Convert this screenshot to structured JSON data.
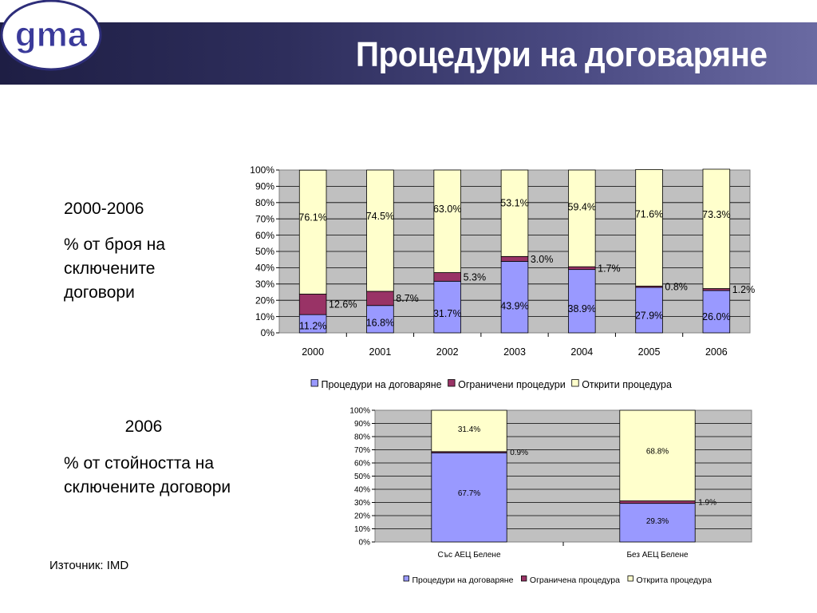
{
  "header": {
    "title": "Процедури на договаряне",
    "logo_text": "gma"
  },
  "left_text": {
    "period": "2000-2006",
    "desc_top": "% от броя на сключените договори",
    "year_bottom": "2006",
    "desc_bottom": "% от стойността на сключените договори",
    "source": "Източник: IMD"
  },
  "colors": {
    "negotiated": "#9999ff",
    "restricted": "#993366",
    "open": "#ffffcc",
    "plot_bg": "#c0c0c0"
  },
  "chart_data": [
    {
      "type": "bar",
      "stacked": true,
      "categories": [
        "2000",
        "2001",
        "2002",
        "2003",
        "2004",
        "2005",
        "2006"
      ],
      "series": [
        {
          "name": "Процедури на договаряне",
          "values": [
            11.2,
            16.8,
            31.7,
            43.9,
            38.9,
            27.9,
            26.0
          ],
          "labels": [
            "11.2%",
            "16.8%",
            "31.7%",
            "43.9%",
            "38.9%",
            "27.9%",
            "26.0%"
          ]
        },
        {
          "name": "Ограничени процедури",
          "values": [
            12.6,
            8.7,
            5.3,
            3.0,
            1.7,
            0.8,
            1.2
          ],
          "labels": [
            "12.6%",
            "8.7%",
            "5.3%",
            "3.0%",
            "1.7%",
            "0.8%",
            "1.2%"
          ]
        },
        {
          "name": "Открити процедура",
          "values": [
            76.1,
            74.5,
            63.0,
            53.1,
            59.4,
            71.6,
            73.3
          ],
          "labels": [
            "76.1%",
            "74.5%",
            "63.0%",
            "53.1%",
            "59.4%",
            "71.6%",
            "73.3%"
          ]
        }
      ],
      "y_ticks": [
        "0%",
        "10%",
        "20%",
        "30%",
        "40%",
        "50%",
        "60%",
        "70%",
        "80%",
        "90%",
        "100%"
      ],
      "ylim": [
        0,
        100
      ],
      "grid": true,
      "legend": "bottom"
    },
    {
      "type": "bar",
      "stacked": true,
      "categories": [
        "Със АЕЦ Белене",
        "Без АЕЦ Белене"
      ],
      "series": [
        {
          "name": "Процедури на договаряне",
          "values": [
            67.7,
            29.3
          ],
          "labels": [
            "67.7%",
            "29.3%"
          ]
        },
        {
          "name": "Ограничена процедура",
          "values": [
            0.9,
            1.9
          ],
          "labels": [
            "0.9%",
            "1.9%"
          ]
        },
        {
          "name": "Открита процедура",
          "values": [
            31.4,
            68.8
          ],
          "labels": [
            "31.4%",
            "68.8%"
          ]
        }
      ],
      "y_ticks": [
        "0%",
        "10%",
        "20%",
        "30%",
        "40%",
        "50%",
        "60%",
        "70%",
        "80%",
        "90%",
        "100%"
      ],
      "ylim": [
        0,
        100
      ],
      "grid": true,
      "legend": "bottom"
    }
  ]
}
